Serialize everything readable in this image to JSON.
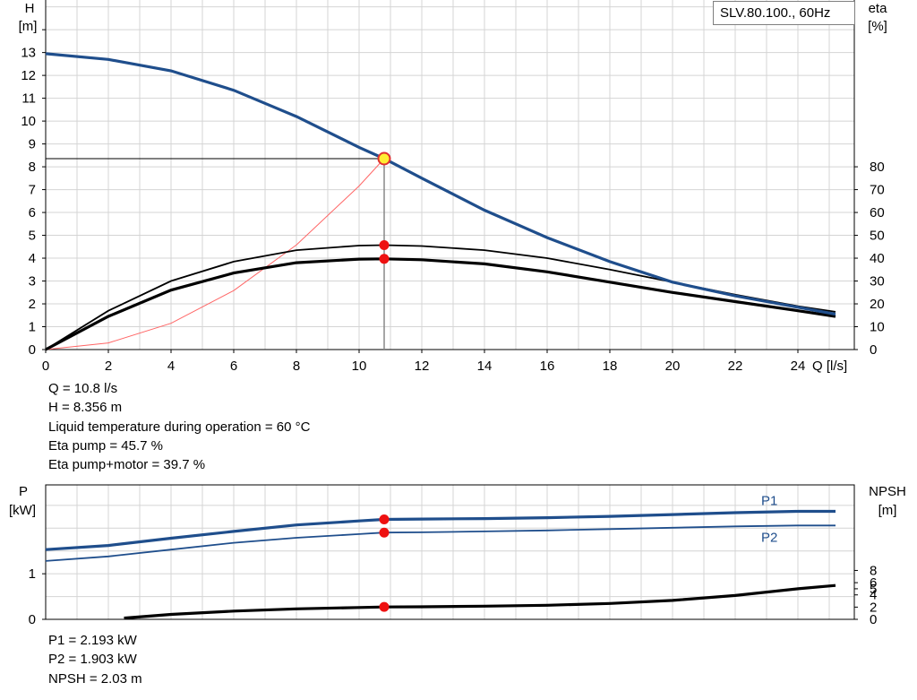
{
  "legend_title": "SLV.80.100., 60Hz",
  "top_info": [
    "Q = 10.8 l/s",
    "H = 8.356 m",
    "Liquid temperature during operation = 60 °C",
    "Eta pump = 45.7 %",
    "Eta pump+motor = 39.7 %"
  ],
  "bottom_info": [
    "P1 = 2.193 kW",
    "P2 = 1.903 kW",
    "NPSH = 2.03 m"
  ],
  "chart_data": [
    {
      "type": "line",
      "panel": "head-efficiency",
      "x_label": "Q [l/s]",
      "y_label_left": [
        "H",
        "[m]"
      ],
      "y_label_right": [
        "eta",
        "[%]"
      ],
      "xlim": [
        0,
        25.8
      ],
      "ylim_left": [
        0,
        15.3
      ],
      "ylim_right": [
        0,
        153
      ],
      "x_ticks": [
        0,
        2,
        4,
        6,
        8,
        10,
        12,
        14,
        16,
        18,
        20,
        22,
        24
      ],
      "y_ticks_left": [
        0,
        1,
        2,
        3,
        4,
        5,
        6,
        7,
        8,
        9,
        10,
        11,
        12,
        13
      ],
      "y_ticks_right": [
        0,
        10,
        20,
        30,
        40,
        50,
        60,
        70,
        80
      ],
      "grid": true,
      "series": [
        {
          "axis": "left",
          "color": "#1f4e8c",
          "points": [
            [
              0,
              12.95
            ],
            [
              2,
              12.7
            ],
            [
              4,
              12.2
            ],
            [
              6,
              11.35
            ],
            [
              8,
              10.2
            ],
            [
              10,
              8.85
            ],
            [
              10.8,
              8.356
            ],
            [
              12,
              7.5
            ],
            [
              14,
              6.1
            ],
            [
              16,
              4.9
            ],
            [
              18,
              3.85
            ],
            [
              20,
              2.95
            ],
            [
              22,
              2.35
            ],
            [
              24,
              1.85
            ],
            [
              25.2,
              1.55
            ]
          ]
        },
        {
          "axis": "right",
          "color": "#000000",
          "weight": "thin",
          "points": [
            [
              0,
              0
            ],
            [
              2,
              17
            ],
            [
              4,
              30
            ],
            [
              6,
              38.5
            ],
            [
              8,
              43.5
            ],
            [
              10,
              45.5
            ],
            [
              10.8,
              45.7
            ],
            [
              12,
              45.3
            ],
            [
              14,
              43.5
            ],
            [
              16,
              40
            ],
            [
              18,
              35
            ],
            [
              20,
              29.5
            ],
            [
              22,
              24
            ],
            [
              24,
              19
            ],
            [
              25.2,
              16.5
            ]
          ]
        },
        {
          "axis": "right",
          "color": "#000000",
          "weight": "thick",
          "points": [
            [
              0,
              0
            ],
            [
              2,
              14.5
            ],
            [
              4,
              26
            ],
            [
              6,
              33.5
            ],
            [
              8,
              38
            ],
            [
              10,
              39.6
            ],
            [
              10.8,
              39.7
            ],
            [
              12,
              39.3
            ],
            [
              14,
              37.5
            ],
            [
              16,
              34
            ],
            [
              18,
              29.5
            ],
            [
              20,
              25
            ],
            [
              22,
              21
            ],
            [
              24,
              17
            ],
            [
              25.2,
              14.5
            ]
          ]
        },
        {
          "axis": "left",
          "color": "#ff6666",
          "style": "system-curve",
          "points": [
            [
              0,
              0
            ],
            [
              2,
              0.29
            ],
            [
              4,
              1.15
            ],
            [
              6,
              2.58
            ],
            [
              8,
              4.58
            ],
            [
              10,
              7.16
            ],
            [
              10.8,
              8.356
            ]
          ]
        }
      ],
      "operating_point": {
        "Q": 10.8,
        "H": 8.356,
        "eta_pump": 45.7,
        "eta_pump_motor": 39.7
      }
    },
    {
      "type": "line",
      "panel": "power-npsh",
      "y_label_left": [
        "P",
        "[kW]"
      ],
      "y_label_right": [
        "NPSH",
        "[m]"
      ],
      "xlim": [
        0,
        25.8
      ],
      "ylim_left": [
        0,
        2.95
      ],
      "ylim_right": [
        0,
        22
      ],
      "y_ticks_left": [
        0,
        1
      ],
      "y_ticks_right": [
        0,
        2,
        4,
        5,
        6,
        8
      ],
      "series": [
        {
          "name": "P1",
          "axis": "left",
          "color": "#1f4e8c",
          "weight": "thick",
          "points": [
            [
              0,
              1.53
            ],
            [
              2,
              1.62
            ],
            [
              4,
              1.78
            ],
            [
              6,
              1.93
            ],
            [
              8,
              2.07
            ],
            [
              10,
              2.16
            ],
            [
              10.8,
              2.193
            ],
            [
              12,
              2.2
            ],
            [
              14,
              2.21
            ],
            [
              16,
              2.23
            ],
            [
              18,
              2.26
            ],
            [
              20,
              2.3
            ],
            [
              22,
              2.34
            ],
            [
              24,
              2.37
            ],
            [
              25.2,
              2.37
            ]
          ]
        },
        {
          "name": "P2",
          "axis": "left",
          "color": "#1f4e8c",
          "weight": "thin",
          "points": [
            [
              0,
              1.28
            ],
            [
              2,
              1.38
            ],
            [
              4,
              1.53
            ],
            [
              6,
              1.68
            ],
            [
              8,
              1.79
            ],
            [
              10,
              1.87
            ],
            [
              10.8,
              1.903
            ],
            [
              12,
              1.91
            ],
            [
              14,
              1.93
            ],
            [
              16,
              1.95
            ],
            [
              18,
              1.98
            ],
            [
              20,
              2.01
            ],
            [
              22,
              2.04
            ],
            [
              24,
              2.06
            ],
            [
              25.2,
              2.06
            ]
          ]
        },
        {
          "axis": "right",
          "color": "#000000",
          "weight": "thick",
          "points": [
            [
              2.5,
              0.2
            ],
            [
              4,
              0.8
            ],
            [
              6,
              1.35
            ],
            [
              8,
              1.72
            ],
            [
              10,
              1.93
            ],
            [
              10.8,
              2.03
            ],
            [
              12,
              2.06
            ],
            [
              14,
              2.15
            ],
            [
              16,
              2.3
            ],
            [
              18,
              2.6
            ],
            [
              20,
              3.1
            ],
            [
              22,
              3.9
            ],
            [
              24,
              5.0
            ],
            [
              25.2,
              5.55
            ]
          ]
        }
      ],
      "operating_point": {
        "Q": 10.8,
        "P1": 2.193,
        "P2": 1.903,
        "NPSH": 2.03
      }
    }
  ]
}
